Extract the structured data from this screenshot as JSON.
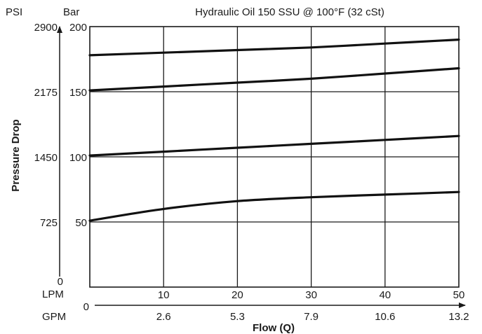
{
  "chart_data": {
    "type": "line",
    "title": "Hydraulic Oil 150 SSU @ 100°F (32 cSt)",
    "ylabel": "Pressure Drop",
    "xlabel": "Flow (Q)",
    "y_unit_primary": "Bar",
    "y_unit_secondary": "PSI",
    "x_unit_primary": "LPM",
    "x_unit_secondary": "GPM",
    "xlim": [
      0,
      50
    ],
    "ylim": [
      0,
      200
    ],
    "grid": true,
    "bar_ticks": [
      {
        "value": 50,
        "label": "50"
      },
      {
        "value": 100,
        "label": "100"
      },
      {
        "value": 150,
        "label": "150"
      },
      {
        "value": 200,
        "label": "200"
      }
    ],
    "psi_ticks": [
      {
        "value": 0,
        "label": "0"
      },
      {
        "value": 50,
        "label": "725"
      },
      {
        "value": 100,
        "label": "1450"
      },
      {
        "value": 150,
        "label": "2175"
      },
      {
        "value": 200,
        "label": "2900"
      }
    ],
    "lpm_ticks": [
      {
        "value": 10,
        "label": "10"
      },
      {
        "value": 20,
        "label": "20"
      },
      {
        "value": 30,
        "label": "30"
      },
      {
        "value": 40,
        "label": "40"
      },
      {
        "value": 50,
        "label": "50"
      }
    ],
    "gpm_ticks": [
      {
        "value": 10,
        "label": "2.6"
      },
      {
        "value": 20,
        "label": "5.3"
      },
      {
        "value": 30,
        "label": "7.9"
      },
      {
        "value": 40,
        "label": "10.6"
      },
      {
        "value": 50,
        "label": "13.2"
      }
    ],
    "flow_origin_label": "0",
    "series": [
      {
        "x": [
          0,
          10,
          20,
          30,
          40,
          50
        ],
        "values": [
          51,
          60,
          66,
          69,
          71,
          73
        ]
      },
      {
        "x": [
          0,
          10,
          20,
          30,
          40,
          50
        ],
        "values": [
          101,
          104,
          107,
          110,
          113,
          116
        ]
      },
      {
        "x": [
          0,
          10,
          20,
          30,
          40,
          50
        ],
        "values": [
          151,
          154,
          157,
          160,
          164,
          168
        ]
      },
      {
        "x": [
          0,
          10,
          20,
          30,
          40,
          50
        ],
        "values": [
          178,
          180,
          182,
          184,
          187,
          190
        ]
      }
    ]
  }
}
